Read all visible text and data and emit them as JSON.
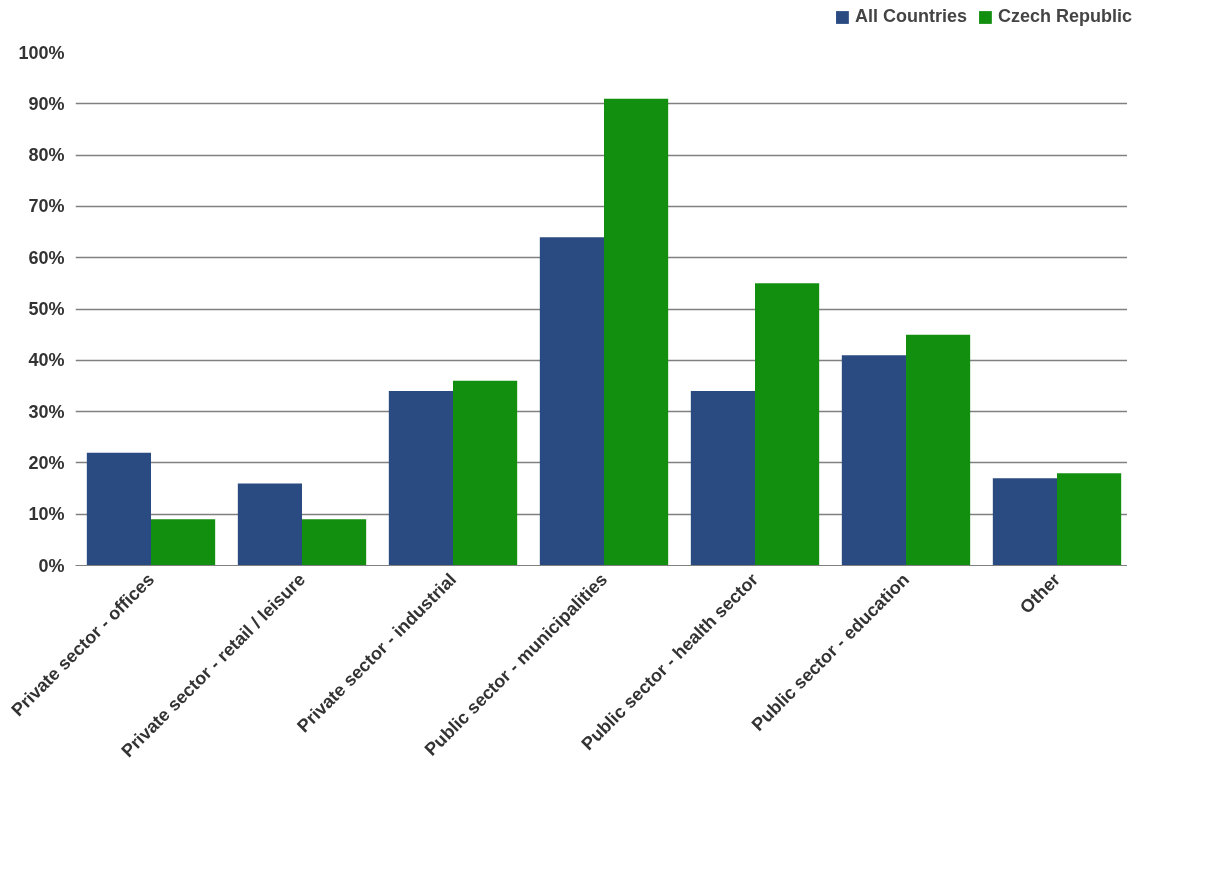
{
  "chart_data": {
    "type": "bar",
    "categories": [
      "Private sector - offices",
      "Private sector - retail / leisure",
      "Private sector - industrial",
      "Public sector - municipalities",
      "Public sector - health sector",
      "Public sector - education",
      "Other"
    ],
    "series": [
      {
        "name": "All Countries",
        "color": "#2a4a82",
        "values": [
          22,
          16,
          34,
          64,
          34,
          41,
          17
        ]
      },
      {
        "name": "Czech Republic",
        "color": "#138f10",
        "values": [
          9,
          9,
          36,
          91,
          55,
          45,
          18
        ]
      }
    ],
    "ylim": [
      0,
      100
    ],
    "yticks": [
      {
        "value": 0,
        "label": "0%"
      },
      {
        "value": 10,
        "label": "10%"
      },
      {
        "value": 20,
        "label": "20%"
      },
      {
        "value": 30,
        "label": "30%"
      },
      {
        "value": 40,
        "label": "40%"
      },
      {
        "value": 50,
        "label": "50%"
      },
      {
        "value": 60,
        "label": "60%"
      },
      {
        "value": 70,
        "label": "70%"
      },
      {
        "value": 80,
        "label": "80%"
      },
      {
        "value": 90,
        "label": "90%"
      },
      {
        "value": 100,
        "label": "100%"
      }
    ],
    "grid": "y",
    "legend": "top right"
  }
}
